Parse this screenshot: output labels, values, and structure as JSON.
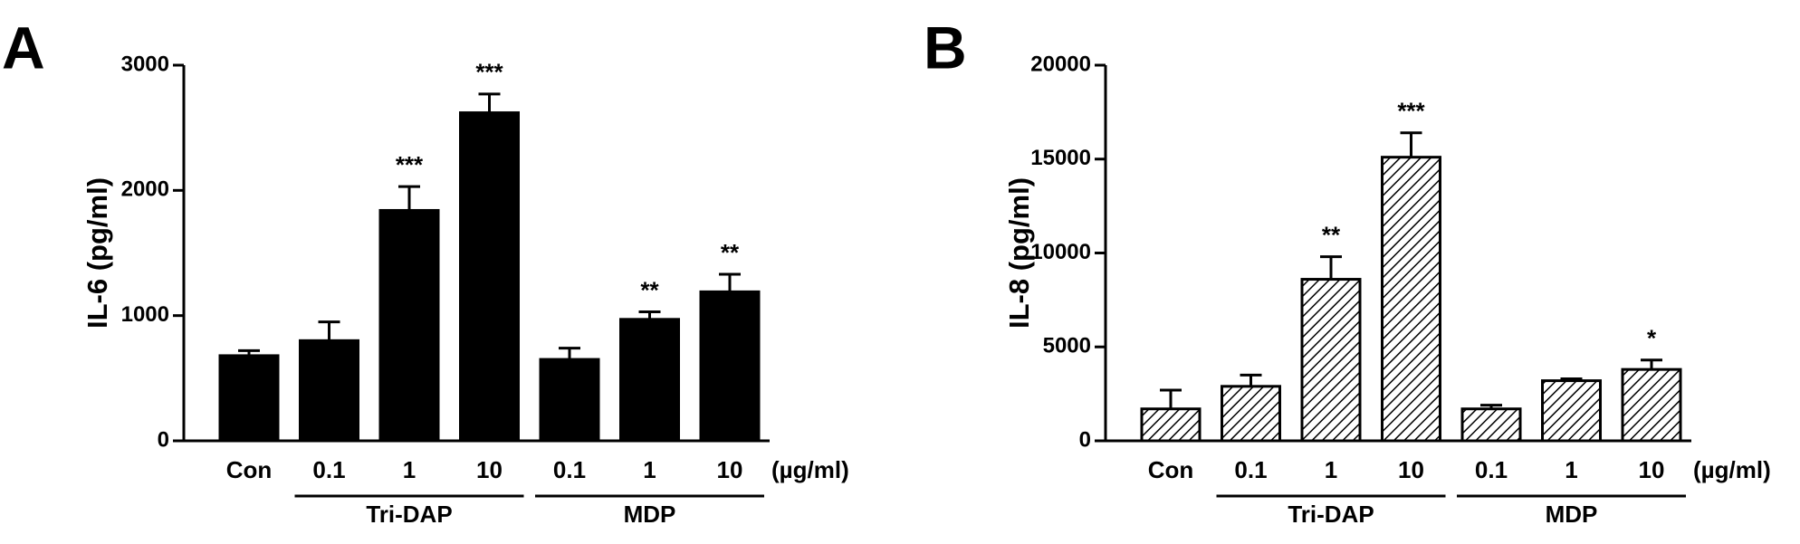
{
  "chart_data": [
    {
      "type": "bar",
      "panel": "A",
      "ylabel": "IL-6 (pg/ml)",
      "xlabel": "(µg/ml)",
      "categories": [
        "Con",
        "0.1",
        "1",
        "10",
        "0.1",
        "1",
        "10"
      ],
      "category_groups": [
        null,
        "Tri-DAP",
        "Tri-DAP",
        "Tri-DAP",
        "MDP",
        "MDP",
        "MDP"
      ],
      "values": [
        680,
        800,
        1840,
        2620,
        650,
        970,
        1190
      ],
      "errors": [
        40,
        150,
        190,
        150,
        90,
        60,
        140
      ],
      "significance": [
        null,
        null,
        "***",
        "***",
        null,
        "**",
        "**"
      ],
      "color": "#000000",
      "hatch": false,
      "ylim": [
        0,
        3000
      ],
      "yticks": [
        0,
        1000,
        2000,
        3000
      ]
    },
    {
      "type": "bar",
      "panel": "B",
      "ylabel": "IL-8 (pg/ml)",
      "xlabel": "(µg/ml)",
      "categories": [
        "Con",
        "0.1",
        "1",
        "10",
        "0.1",
        "1",
        "10"
      ],
      "category_groups": [
        null,
        "Tri-DAP",
        "Tri-DAP",
        "Tri-DAP",
        "MDP",
        "MDP",
        "MDP"
      ],
      "values": [
        1700,
        2900,
        8600,
        15100,
        1700,
        3200,
        3800
      ],
      "errors": [
        1000,
        600,
        1200,
        1300,
        200,
        100,
        500
      ],
      "significance": [
        null,
        null,
        "**",
        "***",
        null,
        null,
        "*"
      ],
      "color": "#000000",
      "hatch": true,
      "ylim": [
        0,
        20000
      ],
      "yticks": [
        0,
        5000,
        10000,
        15000,
        20000
      ]
    }
  ]
}
